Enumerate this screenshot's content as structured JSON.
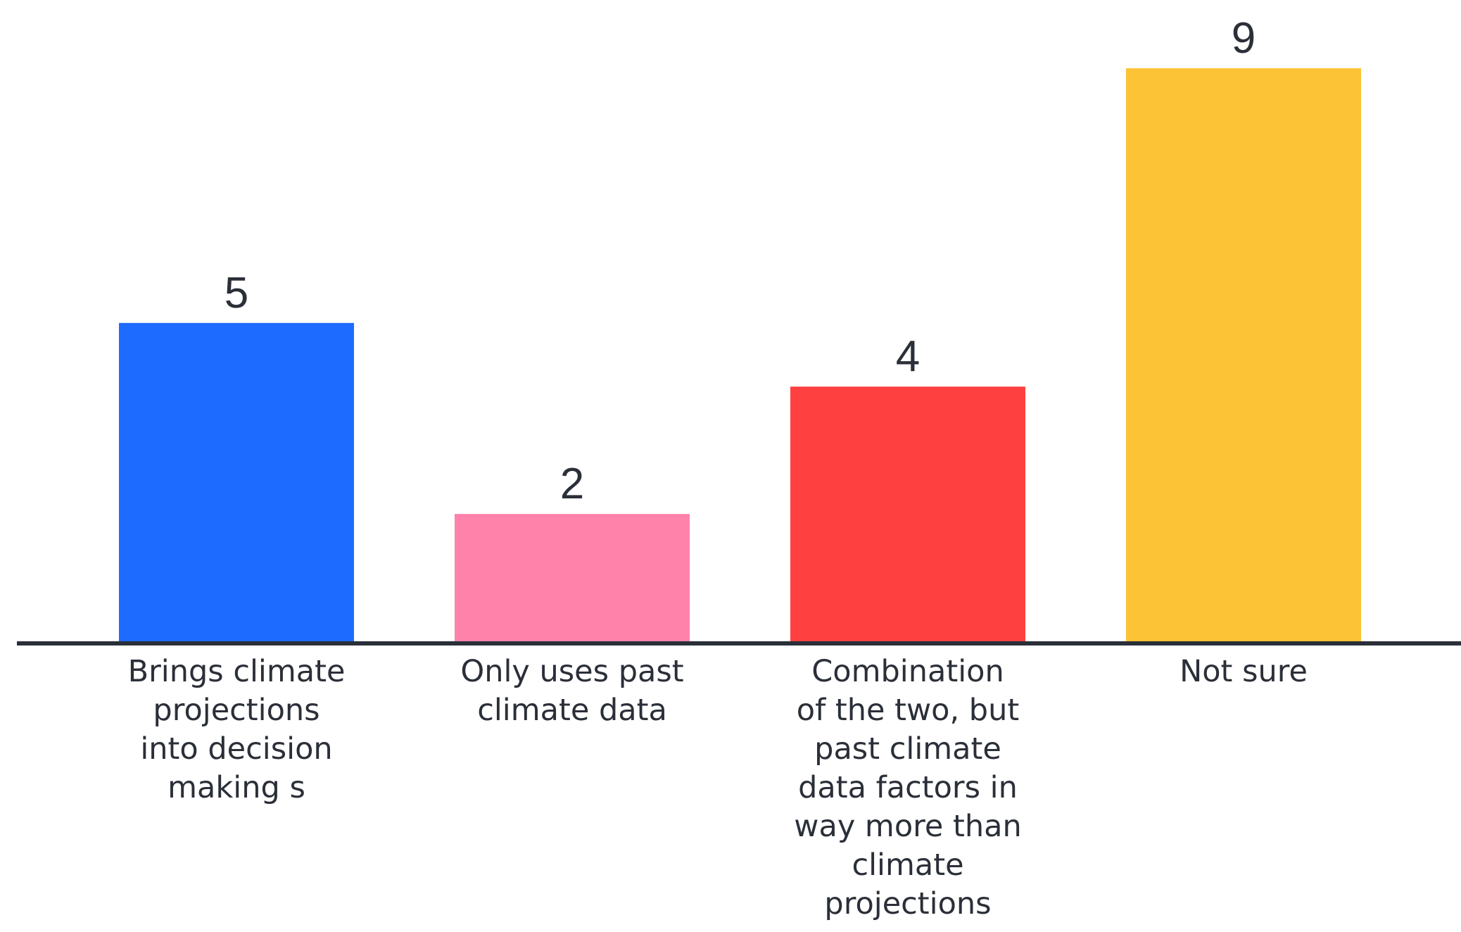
{
  "chart_data": {
    "type": "bar",
    "title": "",
    "xlabel": "",
    "ylabel": "",
    "ylim": [
      0,
      9
    ],
    "grid": false,
    "legend": "none",
    "categories": [
      "Brings climate projections into decision making s",
      "Only uses past climate data",
      "Combination of the two, but past climate data factors in way more than climate projections",
      "Not sure"
    ],
    "category_lines": [
      [
        "Brings climate",
        "projections",
        "into decision",
        "making s"
      ],
      [
        "Only uses past",
        "climate data"
      ],
      [
        "Combination",
        "of the two, but",
        "past climate",
        "data factors in",
        "way more than",
        "climate",
        "projections"
      ],
      [
        "Not sure"
      ]
    ],
    "values": [
      5,
      2,
      4,
      9
    ],
    "value_labels": [
      "5",
      "2",
      "4",
      "9"
    ],
    "colors": [
      "#1e6bff",
      "#ff82ab",
      "#ff4040",
      "#fdc336"
    ],
    "axis_color": "#2a2f38"
  }
}
